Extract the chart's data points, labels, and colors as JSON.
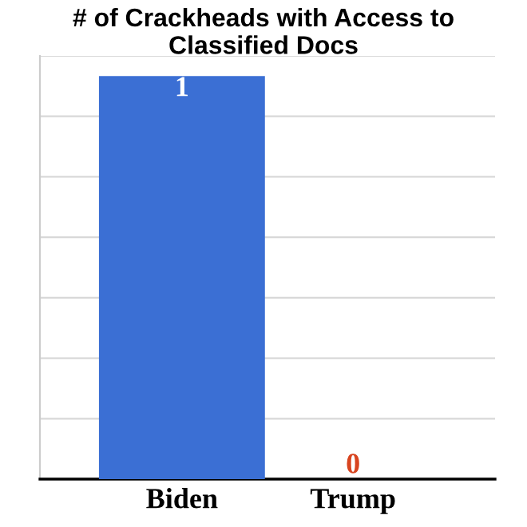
{
  "chart_data": {
    "type": "bar",
    "title": "# of Crackheads with Access to\nClassified Docs",
    "categories": [
      "Biden",
      "Trump"
    ],
    "values": [
      1,
      0
    ],
    "data_labels": true,
    "colors": [
      "#3b6fd4",
      "#d8441f"
    ],
    "tick_labels": "x",
    "grid": "y"
  }
}
